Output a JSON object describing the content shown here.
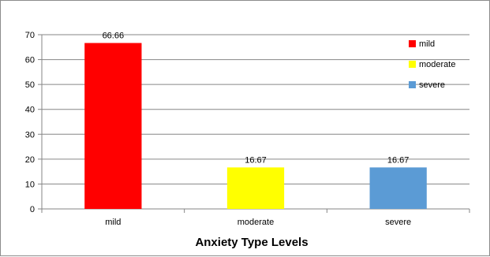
{
  "chart_data": {
    "type": "bar",
    "title": "",
    "xlabel": "Anxiety Type Levels",
    "ylabel": "",
    "categories": [
      "mild",
      "moderate",
      "severe"
    ],
    "values": [
      66.66,
      16.67,
      16.67
    ],
    "data_labels": [
      "66.66",
      "16.67",
      "16.67"
    ],
    "colors": [
      "#ff0000",
      "#ffff00",
      "#5b9bd5"
    ],
    "ylim": [
      0,
      70
    ],
    "yticks": [
      0,
      10,
      20,
      30,
      40,
      50,
      60,
      70
    ],
    "grid": true,
    "legend": {
      "position": "right",
      "entries": [
        {
          "label": "mild",
          "color": "#ff0000"
        },
        {
          "label": "moderate",
          "color": "#ffff00"
        },
        {
          "label": "severe",
          "color": "#5b9bd5"
        }
      ]
    }
  }
}
